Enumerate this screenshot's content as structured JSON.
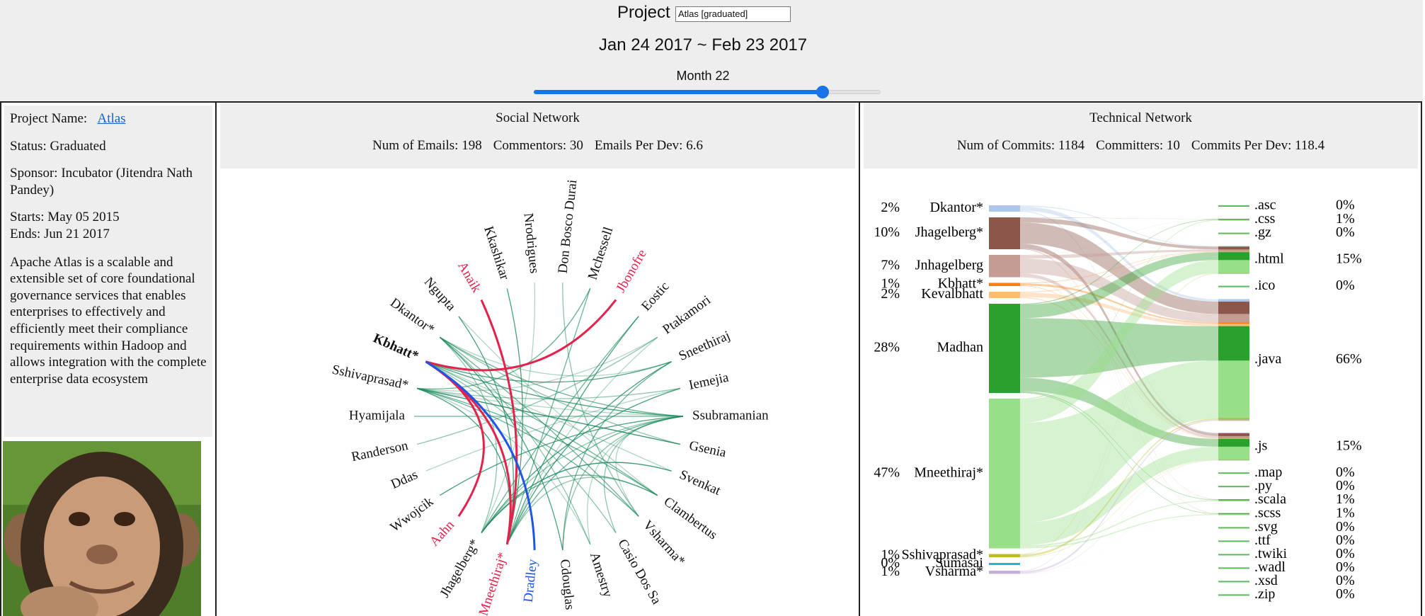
{
  "header": {
    "project_label": "Project",
    "project_select": "Atlas [graduated]",
    "date_range": "Jan 24 2017 ~ Feb 23 2017",
    "month_label": "Month 22"
  },
  "project": {
    "name_label": "Project Name:",
    "name": "Atlas",
    "status": "Status: Graduated",
    "sponsor": "Sponsor: Incubator (Jitendra Nath Pandey)",
    "starts": "Starts: May 05 2015",
    "ends": "Ends: Jun 21 2017",
    "description": "Apache Atlas is a scalable and extensible set of core foundational governance services that enables enterprises to effectively and efficiently meet their compliance requirements within Hadoop and allows integration with the complete enterprise data ecosystem"
  },
  "social": {
    "title": "Social Network",
    "stats": [
      {
        "label": "Num of Emails:",
        "value": 198
      },
      {
        "label": "Commentors:",
        "value": 30
      },
      {
        "label": "Emails Per Dev:",
        "value": 6.6
      }
    ],
    "nodes": [
      {
        "name": "Ssubramanian"
      },
      {
        "name": "Gsenia"
      },
      {
        "name": "Svenkat"
      },
      {
        "name": "Clambertus"
      },
      {
        "name": "Vsharma*"
      },
      {
        "name": "Casio Dos Sa"
      },
      {
        "name": "Amestry"
      },
      {
        "name": "Cdouglas"
      },
      {
        "name": "Dradley",
        "color": "#1f55e6"
      },
      {
        "name": "Mneethiraj*",
        "color": "#e3234b"
      },
      {
        "name": "Jhagelberg*"
      },
      {
        "name": "Aahn",
        "color": "#e3234b"
      },
      {
        "name": "Wwojcik"
      },
      {
        "name": "Ddas"
      },
      {
        "name": "Randerson"
      },
      {
        "name": "Hyamijala"
      },
      {
        "name": "Sshivaprasad*"
      },
      {
        "name": "Kbhatt*",
        "bold": true
      },
      {
        "name": "Dkantor*"
      },
      {
        "name": "Ngupta"
      },
      {
        "name": "Anaik",
        "color": "#e3234b"
      },
      {
        "name": "Kkashikar"
      },
      {
        "name": "Nrodrigues"
      },
      {
        "name": "Don Bosco Durai"
      },
      {
        "name": "Mchessell"
      },
      {
        "name": "Jbonofre",
        "color": "#e3234b"
      },
      {
        "name": "Eostic"
      },
      {
        "name": "Ptakamori"
      },
      {
        "name": "Sneethiraj"
      },
      {
        "name": "Iemejia"
      }
    ]
  },
  "technical": {
    "title": "Technical Network",
    "stats": [
      {
        "label": "Num of Commits:",
        "value": 1184
      },
      {
        "label": "Committers:",
        "value": 10
      },
      {
        "label": "Commits Per Dev:",
        "value": 118.4
      }
    ],
    "developers": [
      {
        "name": "Dkantor*",
        "percent": 2,
        "percent_label": "2%",
        "color": "#aec7e8"
      },
      {
        "name": "Jhagelberg*",
        "percent": 10,
        "percent_label": "10%",
        "color": "#8c564b"
      },
      {
        "name": "Jnhagelberg",
        "percent": 7,
        "percent_label": "7%",
        "color": "#c49c94"
      },
      {
        "name": "Kbhatt*",
        "percent": 1,
        "percent_label": "1%",
        "color": "#ff7f0e"
      },
      {
        "name": "Kevalbhatt",
        "percent": 2,
        "percent_label": "2%",
        "color": "#ffbb78"
      },
      {
        "name": "Madhan",
        "percent": 28,
        "percent_label": "28%",
        "color": "#2ca02c"
      },
      {
        "name": "Mneethiraj*",
        "percent": 47,
        "percent_label": "47%",
        "color": "#98df8a"
      },
      {
        "name": "Sshivaprasad*",
        "percent": 1,
        "percent_label": "1%",
        "color": "#bcbd22"
      },
      {
        "name": "Sumasai",
        "percent": 0,
        "percent_label": "0%",
        "color": "#17becf"
      },
      {
        "name": "Vsharma*",
        "percent": 1,
        "percent_label": "1%",
        "color": "#c5b0d5"
      }
    ],
    "file_types": [
      {
        "name": ".asc",
        "percent": 0,
        "percent_label": "0%"
      },
      {
        "name": ".css",
        "percent": 1,
        "percent_label": "1%"
      },
      {
        "name": ".gz",
        "percent": 0,
        "percent_label": "0%"
      },
      {
        "name": ".html",
        "percent": 15,
        "percent_label": "15%"
      },
      {
        "name": ".ico",
        "percent": 0,
        "percent_label": "0%"
      },
      {
        "name": ".java",
        "percent": 66,
        "percent_label": "66%"
      },
      {
        "name": ".js",
        "percent": 15,
        "percent_label": "15%"
      },
      {
        "name": ".map",
        "percent": 0,
        "percent_label": "0%"
      },
      {
        "name": ".py",
        "percent": 0,
        "percent_label": "0%"
      },
      {
        "name": ".scala",
        "percent": 1,
        "percent_label": "1%"
      },
      {
        "name": ".scss",
        "percent": 1,
        "percent_label": "1%"
      },
      {
        "name": ".svg",
        "percent": 0,
        "percent_label": "0%"
      },
      {
        "name": ".ttf",
        "percent": 0,
        "percent_label": "0%"
      },
      {
        "name": ".twiki",
        "percent": 0,
        "percent_label": "0%"
      },
      {
        "name": ".wadl",
        "percent": 0,
        "percent_label": "0%"
      },
      {
        "name": ".xsd",
        "percent": 0,
        "percent_label": "0%"
      },
      {
        "name": ".zip",
        "percent": 0,
        "percent_label": "0%"
      }
    ]
  }
}
